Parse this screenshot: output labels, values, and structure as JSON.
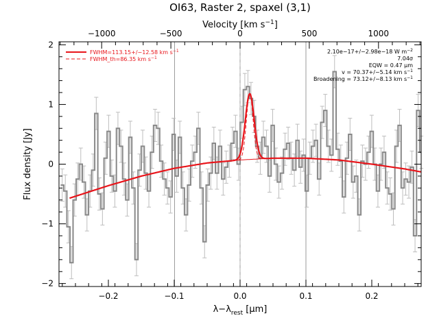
{
  "chart_data": {
    "type": "line",
    "title": "OI63, Raster 2, spaxel (3,1)",
    "xlabel": "λ−λ",
    "xlabel_sub": "rest",
    "xlabel_unit": " [μm]",
    "ylabel": "Flux density [Jy]",
    "top_axis_label": "Velocity [km s",
    "top_axis_label_sup": "−1",
    "top_axis_label_end": "]",
    "xlim": [
      -0.275,
      0.275
    ],
    "ylim": [
      -2.05,
      2.05
    ],
    "xticks": [
      -0.2,
      -0.1,
      0.0,
      0.1,
      0.2
    ],
    "xtick_labels": [
      "−0.2",
      "−0.1",
      "0.0",
      "0.1",
      "0.2"
    ],
    "yticks": [
      -2,
      -1,
      0,
      1,
      2
    ],
    "ytick_labels": [
      "−2",
      "−1",
      "0",
      "1",
      "2"
    ],
    "top_ticks_velocity": [
      -1000,
      -500,
      0,
      500,
      1000
    ],
    "top_tick_labels": [
      "−1000",
      "−500",
      "0",
      "500",
      "1000"
    ],
    "um_per_kms": 0.0002102,
    "vertical_lines_solid": [
      -0.0995,
      0.0,
      0.1
    ],
    "vertical_line_dashed": 0.0,
    "legend": [
      {
        "label": "FWHM=113.15+/−12.58 km s",
        "label_sup": "−1",
        "style": "solid",
        "color": "#e8141a"
      },
      {
        "label": "FWHM_th=86.35 km s",
        "label_sup": "−1",
        "style": "dashed",
        "color": "#e8141a"
      }
    ],
    "annotations": [
      {
        "text": "2.10e−17+/−2.98e−18 W m",
        "sup": "−2"
      },
      {
        "text": "7.04σ",
        "sup": ""
      },
      {
        "text": "EQW = 0.47 μm",
        "sup": ""
      },
      {
        "text": "v = 70.37+/−5.14 km s",
        "sup": "−1"
      },
      {
        "text": "Broadening = 73.12+/−8.13 km s",
        "sup": "−1"
      }
    ],
    "series": [
      {
        "kind": "data-steps",
        "color": "#888888",
        "x": [
          -0.2701,
          -0.2654,
          -0.2607,
          -0.256,
          -0.2513,
          -0.2466,
          -0.2419,
          -0.2372,
          -0.2325,
          -0.2278,
          -0.2231,
          -0.2184,
          -0.2137,
          -0.209,
          -0.2043,
          -0.1996,
          -0.1949,
          -0.1902,
          -0.1855,
          -0.1808,
          -0.1761,
          -0.1714,
          -0.1667,
          -0.162,
          -0.1573,
          -0.1526,
          -0.1479,
          -0.1432,
          -0.1385,
          -0.1338,
          -0.1291,
          -0.1244,
          -0.1197,
          -0.115,
          -0.1103,
          -0.1056,
          -0.1009,
          -0.0962,
          -0.0915,
          -0.0868,
          -0.0821,
          -0.0774,
          -0.0727,
          -0.068,
          -0.0633,
          -0.0586,
          -0.0539,
          -0.0492,
          -0.0445,
          -0.0398,
          -0.0351,
          -0.0304,
          -0.0257,
          -0.021,
          -0.0163,
          -0.0116,
          -0.0069,
          -0.0022,
          0.0025,
          0.0072,
          0.0119,
          0.0166,
          0.0213,
          0.026,
          0.0307,
          0.0354,
          0.0401,
          0.0448,
          0.0495,
          0.0542,
          0.0589,
          0.0636,
          0.0683,
          0.073,
          0.0777,
          0.0824,
          0.0871,
          0.0918,
          0.0965,
          0.1012,
          0.1059,
          0.1106,
          0.1153,
          0.12,
          0.1247,
          0.1294,
          0.1341,
          0.1388,
          0.1435,
          0.1482,
          0.1529,
          0.1576,
          0.1623,
          0.167,
          0.1717,
          0.1764,
          0.1811,
          0.1858,
          0.1905,
          0.1952,
          0.1999,
          0.2046,
          0.2093,
          0.214,
          0.2187,
          0.2234,
          0.2281,
          0.2328,
          0.2375,
          0.2422,
          0.2469,
          0.2516,
          0.2563,
          0.261,
          0.2657,
          0.2704,
          0.2751
        ],
        "y": [
          -0.35,
          -0.45,
          -1.05,
          -1.65,
          -0.6,
          -0.25,
          0.0,
          -0.3,
          -0.85,
          -0.45,
          -0.1,
          0.85,
          -0.5,
          -0.75,
          0.1,
          0.55,
          -0.2,
          -0.45,
          0.6,
          0.3,
          -0.25,
          -0.6,
          0.45,
          -0.4,
          -1.6,
          -0.1,
          0.3,
          -0.15,
          -0.45,
          0.2,
          0.65,
          0.6,
          0.05,
          -0.25,
          -0.4,
          -0.55,
          0.5,
          -0.2,
          0.45,
          -0.4,
          -0.85,
          -0.35,
          0.05,
          0.2,
          0.6,
          -0.4,
          -1.3,
          -0.35,
          -0.15,
          0.35,
          -0.15,
          0.3,
          -0.25,
          -0.05,
          0.05,
          0.35,
          0.55,
          0.0,
          0.7,
          1.25,
          1.3,
          1.1,
          0.8,
          0.3,
          0.1,
          0.45,
          0.3,
          -0.2,
          0.65,
          0.0,
          -0.3,
          -0.15,
          0.25,
          0.35,
          0.1,
          -0.1,
          0.4,
          -0.05,
          0.15,
          -0.45,
          0.1,
          0.3,
          0.4,
          -0.25,
          0.7,
          0.9,
          0.3,
          0.15,
          1.55,
          0.25,
          0.05,
          -0.55,
          0.1,
          0.5,
          -0.3,
          -0.2,
          -0.85,
          0.05,
          0.0,
          0.2,
          0.55,
          0.0,
          -0.45,
          0.0,
          0.2,
          -0.4,
          -0.5,
          -0.75,
          0.3,
          0.65,
          -0.4,
          -0.25,
          -0.3,
          -0.05,
          -1.2,
          0.9,
          0.2
        ],
        "error": 0.27
      },
      {
        "kind": "fit-total",
        "color": "#e8141a",
        "baseline_x": [
          -0.259,
          -0.2,
          -0.15,
          -0.1,
          -0.05,
          0.0,
          0.05,
          0.1,
          0.15,
          0.2,
          0.25,
          0.2751
        ],
        "baseline_y": [
          -0.57,
          -0.36,
          -0.2,
          -0.07,
          0.02,
          0.07,
          0.1,
          0.1,
          0.07,
          0.0,
          -0.08,
          -0.13
        ],
        "gaussian_center": 0.0147,
        "gaussian_peak": 1.1,
        "gaussian_sigma": 0.0067
      },
      {
        "kind": "fit-thermal",
        "color": "#e8141a",
        "style": "dashed",
        "gaussian_center": 0.0147,
        "gaussian_peak": 1.1,
        "gaussian_sigma": 0.0051
      }
    ],
    "grid": false,
    "legend_position": "top-left",
    "annotation_position": "top-right"
  }
}
